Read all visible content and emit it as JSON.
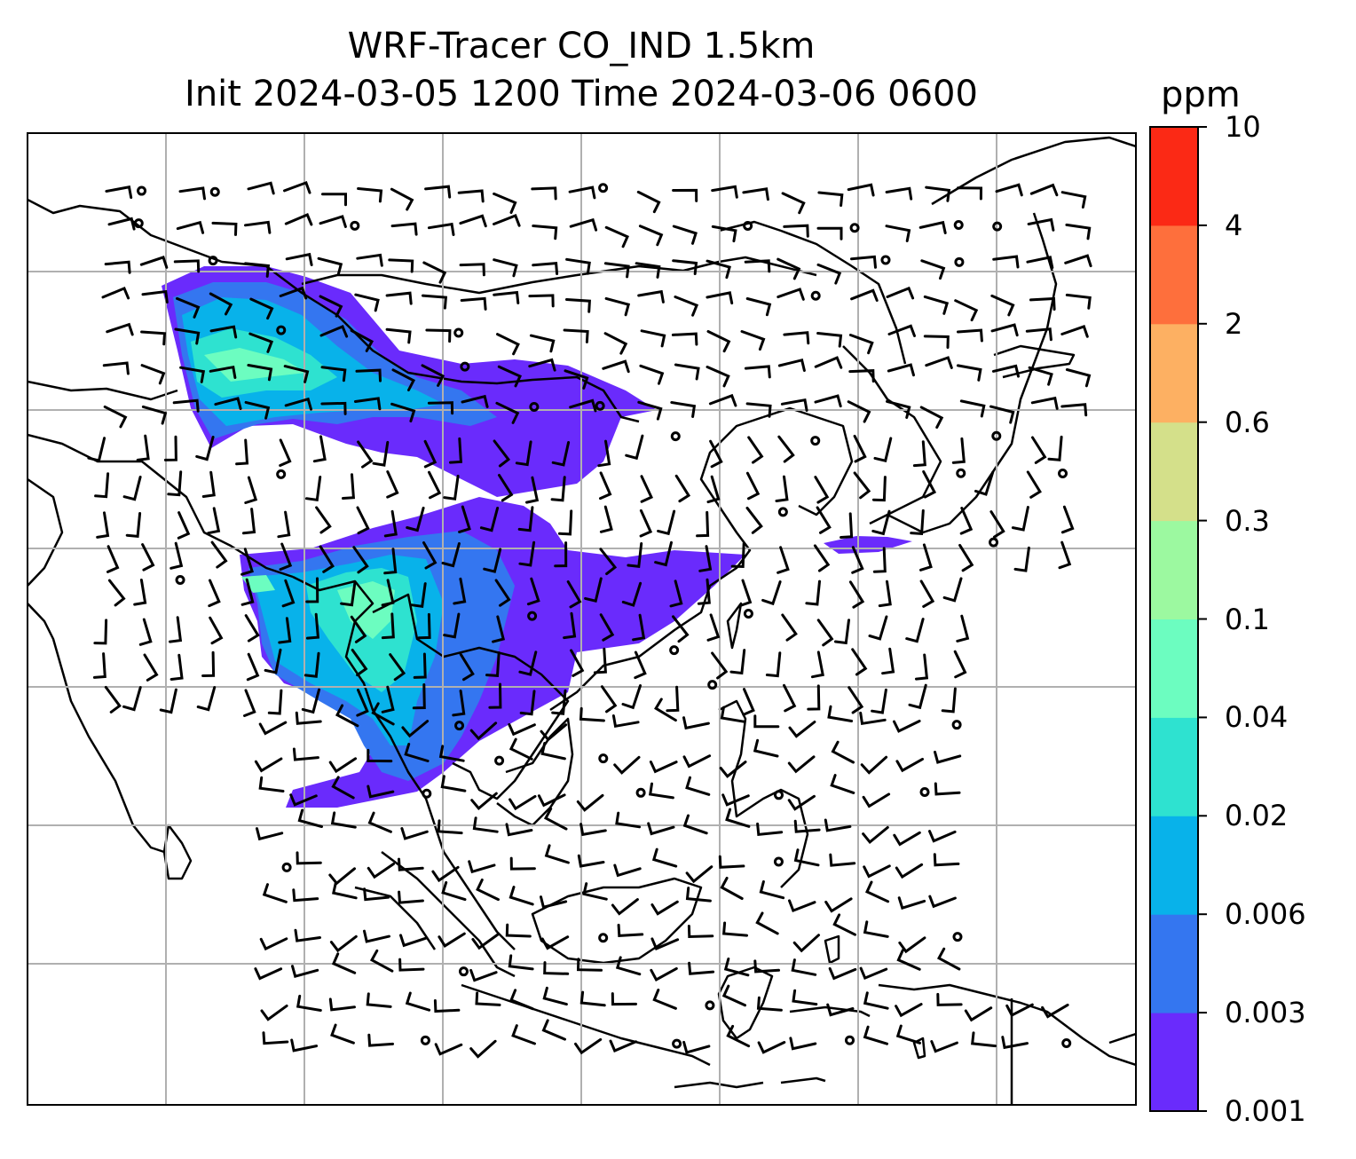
{
  "title": {
    "line1": "WRF-Tracer CO_IND 1.5km",
    "line2": "Init 2024-03-05 1200 Time 2024-03-06 0600"
  },
  "colorbar": {
    "unit": "ppm",
    "levels": [
      "0.001",
      "0.003",
      "0.006",
      "0.02",
      "0.04",
      "0.1",
      "0.3",
      "0.6",
      "2",
      "4",
      "10"
    ],
    "colors": [
      "#6a2bfc",
      "#3476f0",
      "#08b2ea",
      "#2ee2d0",
      "#6cfdc0",
      "#9cf9a0",
      "#d4e08a",
      "#fdb062",
      "#fe6f3c",
      "#fb2915"
    ]
  },
  "map": {
    "background": "#ffffff",
    "gridline_color": "#b0b0b0",
    "coastline_color": "#000000"
  }
}
